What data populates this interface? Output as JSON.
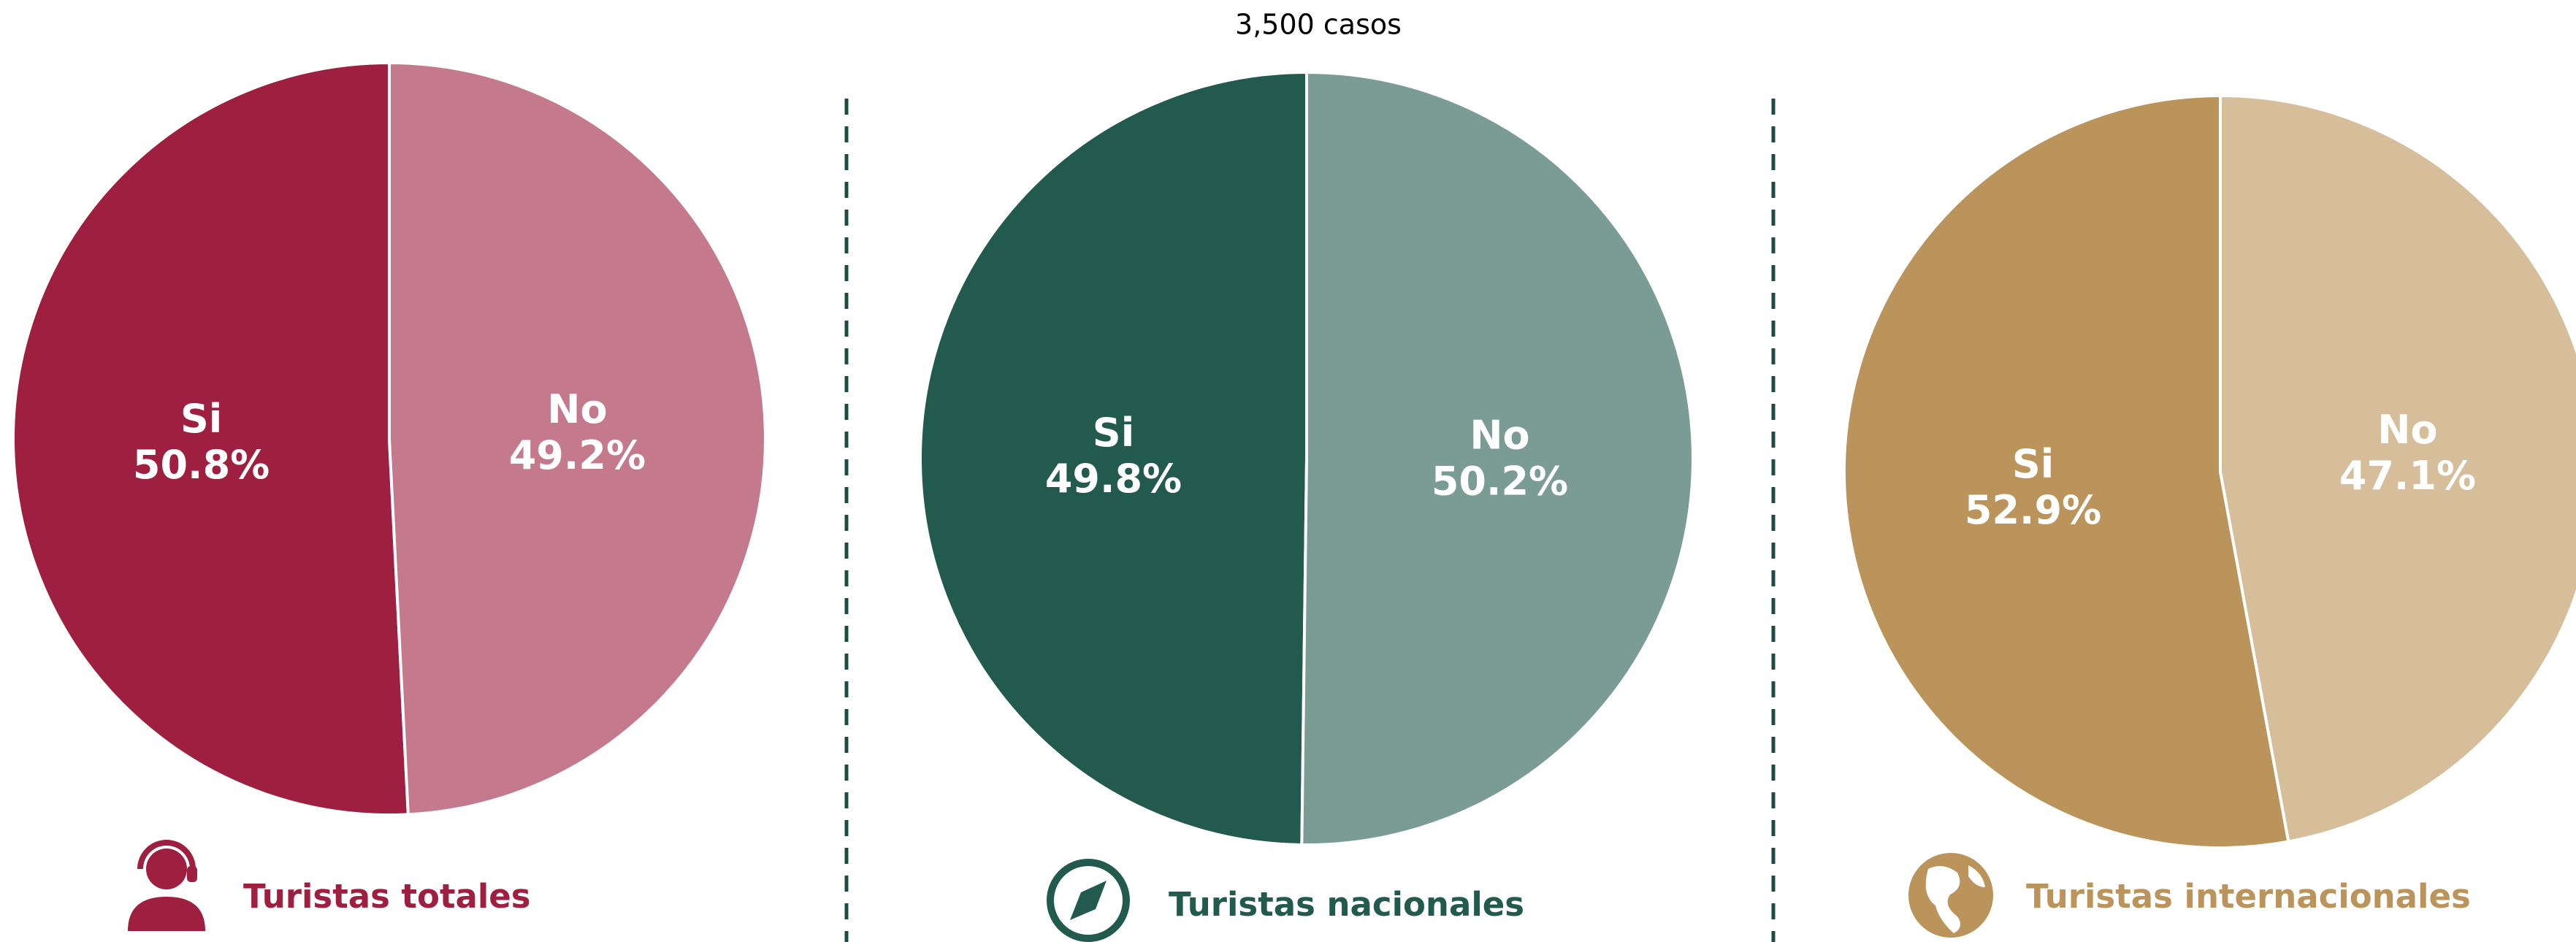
{
  "chart_data": [
    {
      "type": "pie",
      "title": "Turistas totales",
      "categories": [
        "Si",
        "No"
      ],
      "values": [
        50.8,
        49.2
      ],
      "value_labels": [
        "50.8%",
        "49.2%"
      ],
      "colors": [
        "#9e1f3f",
        "#c5798c"
      ]
    },
    {
      "type": "pie",
      "title": "Turistas nacionales",
      "subtitle": "3,500 casos",
      "categories": [
        "Si",
        "No"
      ],
      "values": [
        49.8,
        50.2
      ],
      "value_labels": [
        "49.8%",
        "50.2%"
      ],
      "colors": [
        "#225a4e",
        "#7b9c94"
      ]
    },
    {
      "type": "pie",
      "title": "Turistas internacionales",
      "categories": [
        "Si",
        "No"
      ],
      "values": [
        52.9,
        47.1
      ],
      "value_labels": [
        "52.9%",
        "47.1%"
      ],
      "colors": [
        "#bb945c",
        "#d6be9b"
      ]
    }
  ]
}
